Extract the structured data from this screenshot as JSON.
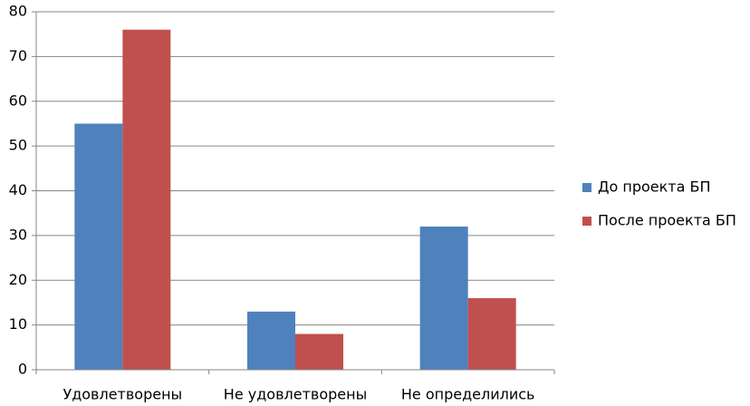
{
  "chart_data": {
    "type": "bar",
    "categories": [
      "Удовлетворены",
      "Не удовлетворены",
      "Не определились"
    ],
    "series": [
      {
        "name": "До проекта БП",
        "color": "#4f81bd",
        "values": [
          55,
          13,
          32
        ]
      },
      {
        "name": "После проекта БП",
        "color": "#c0504d",
        "values": [
          76,
          8,
          16
        ]
      }
    ],
    "ylim": [
      0,
      80
    ],
    "yticks": [
      0,
      10,
      20,
      30,
      40,
      50,
      60,
      70,
      80
    ],
    "grid": true,
    "legend": "right"
  }
}
